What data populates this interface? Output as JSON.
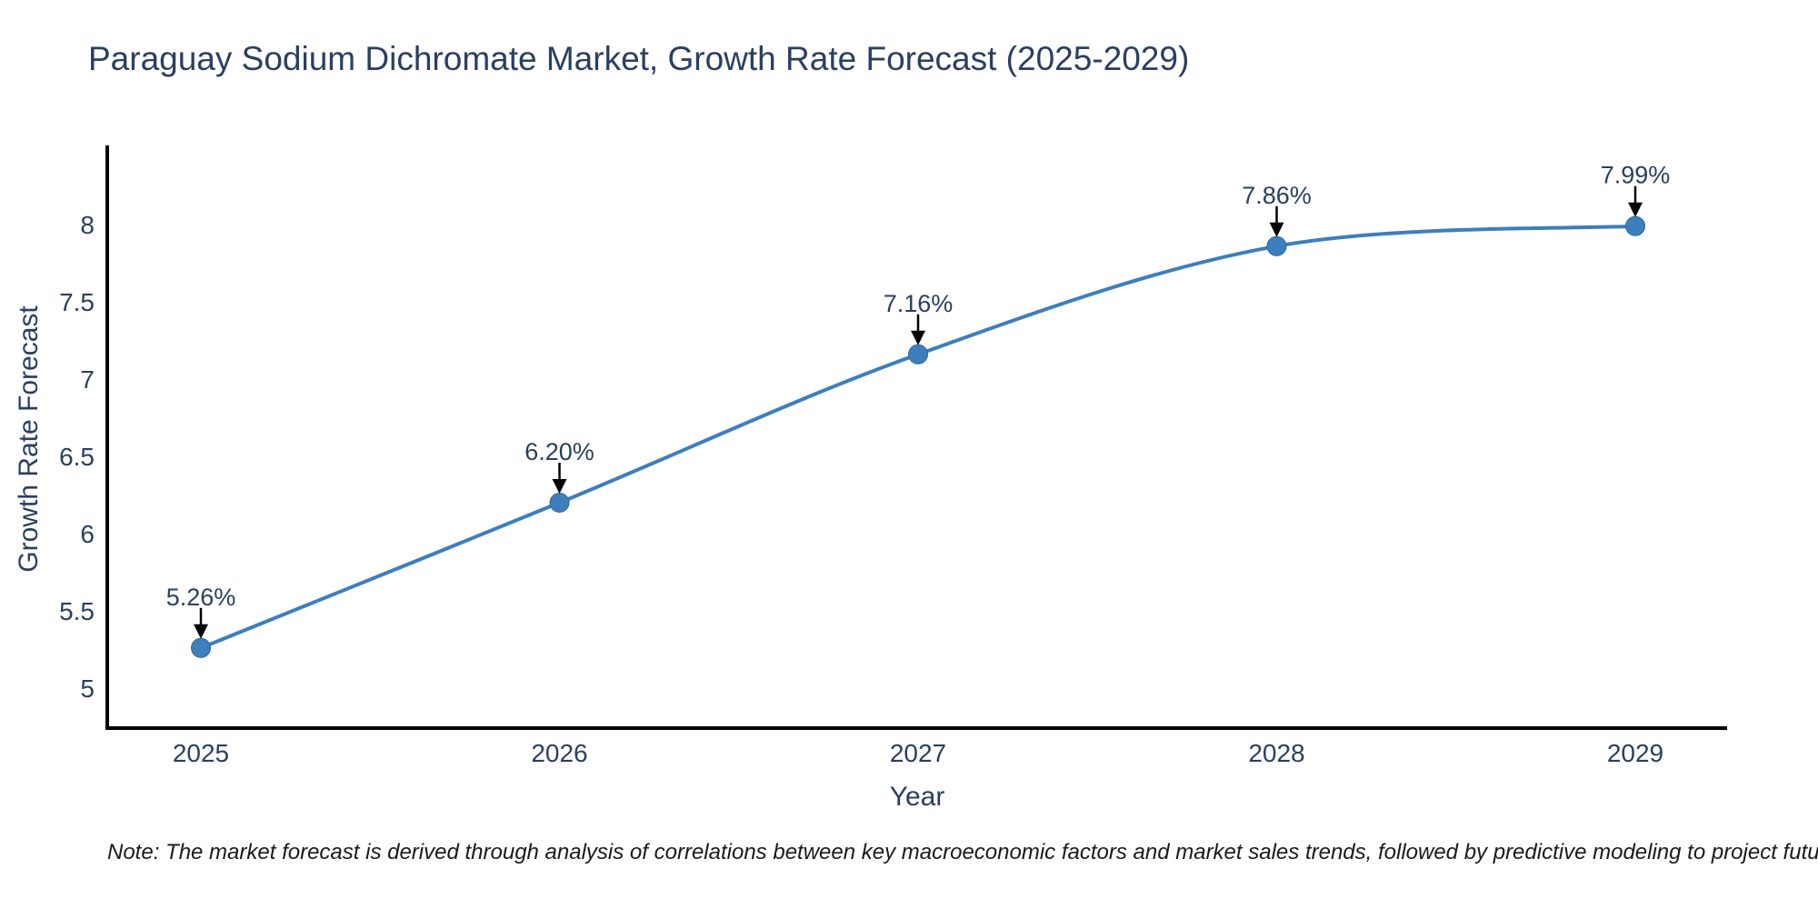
{
  "figure": {
    "note": "Note: The market forecast is derived through analysis of correlations between key macroeconomic factors and market sales trends, followed by predictive modeling to project future sales"
  },
  "chart_data": {
    "type": "line",
    "title": "Paraguay Sodium Dichromate Market, Growth Rate Forecast (2025-2029)",
    "categories": [
      "2025",
      "2026",
      "2027",
      "2028",
      "2029"
    ],
    "series": [
      {
        "name": "Growth Rate Forecast",
        "values": [
          5.26,
          6.2,
          7.16,
          7.86,
          7.99
        ]
      }
    ],
    "point_labels": [
      "5.26%",
      "6.20%",
      "7.16%",
      "7.86%",
      "7.99%"
    ],
    "xlabel": "Year",
    "ylabel": "Growth Rate Forecast",
    "yticks": [
      5,
      5.5,
      6,
      6.5,
      7,
      7.5,
      8
    ],
    "ylim": [
      4.74,
      8.5
    ],
    "line_shape": "spline",
    "markers": true,
    "grid": false,
    "legend_position": "none",
    "colors": {
      "line": "#3d7ebd",
      "marker": "#3d7ebd",
      "marker_edge": "#2f689e",
      "axis": "#000000",
      "text": "#2a3f5f",
      "annotation_arrow": "#000000",
      "note_text": "#1a1a1a",
      "background": "#ffffff"
    }
  }
}
